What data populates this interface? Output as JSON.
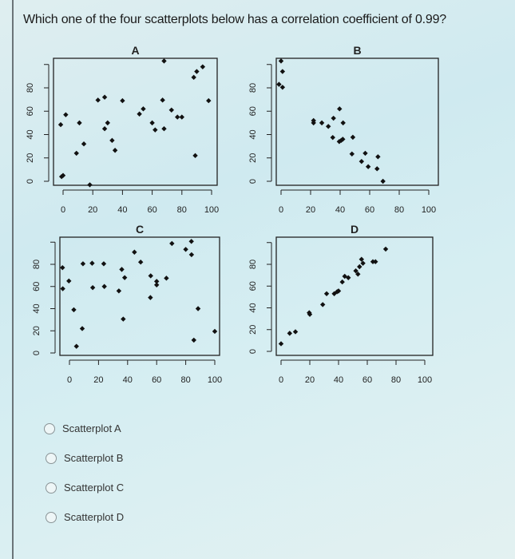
{
  "question": "Which one of the four scatterplots below has a correlation coefficient of 0.99?",
  "options": [
    {
      "label": "Scatterplot A"
    },
    {
      "label": "Scatterplot B"
    },
    {
      "label": "Scatterplot C"
    },
    {
      "label": "Scatterplot D"
    }
  ],
  "chart_data": [
    {
      "type": "scatter",
      "title": "A",
      "xlim": [
        -3,
        105
      ],
      "ylim": [
        -3,
        105
      ],
      "x_ticks": [
        0,
        20,
        40,
        60,
        80,
        100
      ],
      "y_ticks": [
        0,
        20,
        40,
        60,
        80
      ],
      "x": [
        -1.6,
        -1,
        0,
        1.8,
        9,
        11,
        14,
        18,
        23.5,
        28,
        28,
        30,
        33,
        35,
        40,
        51.4,
        54,
        60,
        62,
        67,
        68,
        68,
        73,
        77,
        80,
        88,
        89,
        90,
        94,
        98
      ],
      "y": [
        48.5,
        4,
        5,
        57,
        24,
        50,
        32,
        -3,
        69.5,
        72,
        45,
        50,
        35,
        26.5,
        69,
        57.6,
        62,
        50,
        44,
        69.5,
        103,
        45,
        61,
        55,
        55,
        89,
        22,
        94,
        98,
        69
      ]
    },
    {
      "type": "scatter",
      "title": "B",
      "xlim": [
        -3,
        105
      ],
      "ylim": [
        -3,
        105
      ],
      "x_ticks": [
        0,
        20,
        40,
        60,
        80,
        100
      ],
      "y_ticks": [
        0,
        20,
        40,
        60,
        80
      ],
      "x": [
        0,
        1,
        -1.4,
        1,
        22,
        22,
        27.6,
        32,
        35.5,
        35,
        39.6,
        39.4,
        40.7,
        41.8,
        42,
        48.6,
        48,
        54.5,
        57,
        59,
        65.6,
        65,
        69
      ],
      "y": [
        103,
        94,
        83,
        80.5,
        50,
        52,
        50,
        47,
        54,
        37.5,
        62,
        34,
        35,
        36,
        50,
        37.7,
        23.4,
        17,
        24,
        12.5,
        21,
        10.7,
        0
      ]
    },
    {
      "type": "scatter",
      "title": "C",
      "xlim": [
        -5,
        103
      ],
      "ylim": [
        -3,
        103
      ],
      "x_ticks": [
        0,
        20,
        40,
        60,
        80,
        100
      ],
      "y_ticks": [
        0,
        20,
        40,
        60,
        80
      ],
      "x": [
        -4.8,
        -4.6,
        -0.4,
        3,
        4.8,
        8.8,
        9.3,
        15.6,
        16,
        23.6,
        24,
        34,
        36,
        38,
        37,
        44.7,
        49,
        55.7,
        55.9,
        60,
        60,
        66.7,
        70.5,
        80,
        83.9,
        84,
        85.6,
        88.5,
        100
      ],
      "y": [
        77,
        58,
        65,
        39,
        6,
        22,
        80.5,
        81,
        59,
        80.5,
        60,
        56,
        75.4,
        68,
        30.6,
        91,
        82,
        50,
        69.6,
        64.6,
        61.4,
        67.5,
        98.8,
        93.5,
        100.7,
        88.7,
        11.6,
        40,
        19.5
      ]
    },
    {
      "type": "scatter",
      "title": "D",
      "xlim": [
        -3,
        105
      ],
      "ylim": [
        -3,
        103
      ],
      "x_ticks": [
        0,
        20,
        40,
        60,
        80,
        100
      ],
      "y_ticks": [
        0,
        20,
        40,
        60,
        80
      ],
      "x": [
        0,
        6,
        10,
        19.6,
        20,
        29,
        31.7,
        37,
        39,
        40,
        42.6,
        44.3,
        46.8,
        52,
        53.5,
        54.6,
        56,
        57,
        63.9,
        65.7,
        72.8
      ],
      "y": [
        7,
        16.6,
        18,
        35.5,
        34,
        43,
        53,
        53,
        54.8,
        55.5,
        63.8,
        69,
        67.7,
        74,
        71,
        77.8,
        84.6,
        81,
        82.4,
        82.4,
        94
      ]
    }
  ]
}
